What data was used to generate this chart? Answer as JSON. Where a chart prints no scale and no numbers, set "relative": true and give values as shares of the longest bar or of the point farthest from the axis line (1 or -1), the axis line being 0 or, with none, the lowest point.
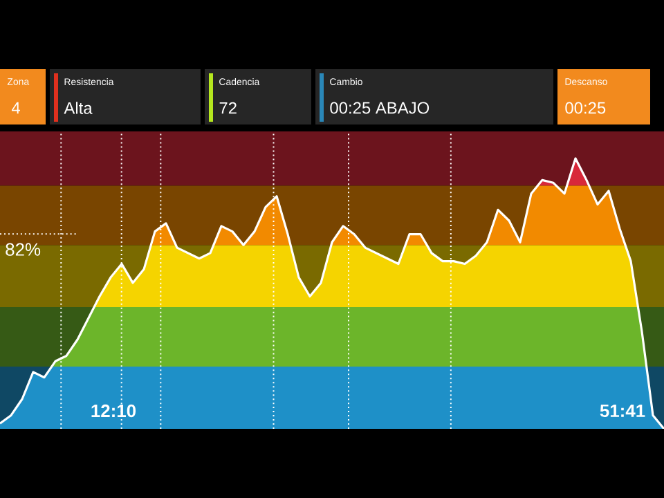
{
  "chart_data": {
    "type": "area",
    "relative": true,
    "categories": [
      null,
      null,
      null,
      null,
      null,
      null,
      null,
      null,
      null,
      null,
      null,
      null,
      null,
      null,
      null,
      null,
      null,
      null,
      null,
      null,
      null,
      null,
      null,
      null,
      null,
      null,
      null,
      null,
      null,
      null,
      null,
      null,
      null,
      null,
      null,
      null,
      null,
      null,
      null,
      null,
      null,
      null,
      null,
      null,
      null,
      null,
      null,
      null,
      null,
      null,
      null,
      null,
      null,
      null,
      null,
      null,
      null,
      null,
      null,
      null,
      null
    ],
    "series": [
      {
        "color": "#ffffff",
        "values": [
          0.02,
          0.05,
          0.11,
          0.21,
          0.19,
          0.25,
          0.27,
          0.33,
          0.41,
          0.49,
          0.56,
          0.61,
          0.54,
          0.59,
          0.73,
          0.76,
          0.67,
          0.65,
          0.63,
          0.65,
          0.75,
          0.73,
          0.68,
          0.73,
          0.82,
          0.86,
          0.72,
          0.56,
          0.49,
          0.54,
          0.69,
          0.75,
          0.72,
          0.67,
          0.65,
          0.63,
          0.61,
          0.72,
          0.72,
          0.65,
          0.62,
          0.62,
          0.61,
          0.64,
          0.69,
          0.81,
          0.77,
          0.69,
          0.87,
          0.92,
          0.91,
          0.87,
          1.0,
          0.92,
          0.83,
          0.88,
          0.74,
          0.62,
          0.36,
          0.05,
          0.0
        ]
      }
    ],
    "bands": [
      {
        "axis": "y",
        "from": 0,
        "to": 0.23,
        "color": "#1e90c8"
      },
      {
        "axis": "y",
        "from": 0.23,
        "to": 0.45,
        "color": "#6cb52a"
      },
      {
        "axis": "y",
        "from": 0.45,
        "to": 0.68,
        "color": "#f5d400"
      },
      {
        "axis": "y",
        "from": 0.68,
        "to": 0.9,
        "color": "#f28a00"
      },
      {
        "axis": "y",
        "from": 0.9,
        "to": 1.1,
        "color": "#d8283a"
      }
    ],
    "annotations": [
      "Zona",
      "4",
      "Resistencia",
      "Alta",
      "Cadencia",
      "72",
      "Cambio",
      "00:25 ABAJO",
      "Descanso",
      "00:25",
      "12:10",
      "51:41",
      "82%"
    ]
  }
}
